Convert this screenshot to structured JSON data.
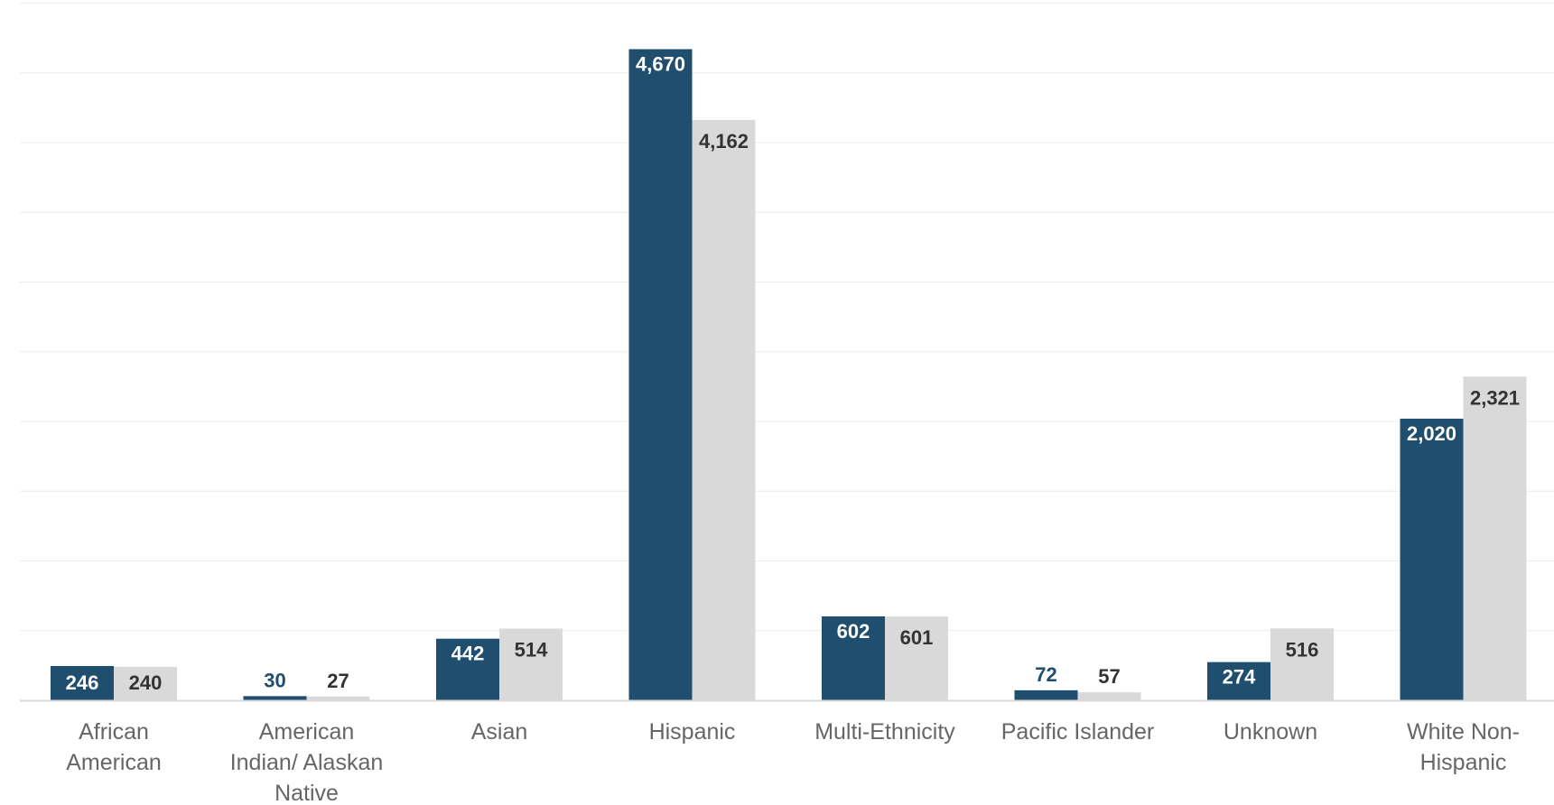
{
  "chart_data": {
    "type": "bar",
    "categories": [
      [
        "African",
        "American"
      ],
      [
        "American",
        "Indian/ Alaskan",
        "Native"
      ],
      [
        "Asian"
      ],
      [
        "Hispanic"
      ],
      [
        "Multi-Ethnicity"
      ],
      [
        "Pacific Islander"
      ],
      [
        "Unknown"
      ],
      [
        "White Non-",
        "Hispanic"
      ]
    ],
    "series": [
      {
        "values": [
          246,
          30,
          442,
          4670,
          602,
          72,
          274,
          2020
        ],
        "labels": [
          "246",
          "30",
          "442",
          "4,670",
          "602",
          "72",
          "274",
          "2,020"
        ],
        "color": "#1f4e6e"
      },
      {
        "values": [
          240,
          27,
          514,
          4162,
          601,
          57,
          516,
          2321
        ],
        "labels": [
          "240",
          "27",
          "514",
          "4,162",
          "601",
          "57",
          "516",
          "2,321"
        ],
        "color": "#d9d9d9"
      }
    ],
    "ylim": [
      0,
      5000
    ],
    "grid": true,
    "gridlines": [
      0,
      500,
      1000,
      1500,
      2000,
      2500,
      3000,
      3500,
      4000,
      4500,
      5000
    ],
    "colors": {
      "grid": "#ececec",
      "axis": "#d9d9d9",
      "category_text": "#666666",
      "label_on_dark": "#ffffff",
      "label_dark": "#1f4e6e",
      "label_light": "#333333"
    }
  }
}
